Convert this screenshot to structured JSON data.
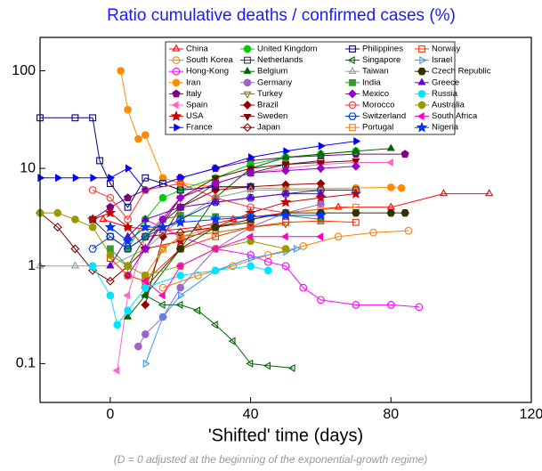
{
  "chart_data": {
    "type": "line",
    "title": "Ratio cumulative deaths / confirmed cases (%)",
    "xlabel": "'Shifted' time (days)",
    "annotation": "(D = 0 adjusted at the beginning of the exponential-growth regime)",
    "xlim": [
      -20,
      120
    ],
    "xticks": [
      0,
      40,
      80,
      120
    ],
    "ylim": [
      0.04,
      220
    ],
    "yticks": [
      0.1,
      1,
      10,
      100
    ],
    "log_y": true,
    "legend": "top-right",
    "series": [
      {
        "name": "China",
        "color": "#ff0000",
        "marker": "triangle-up",
        "filled": false,
        "x": [
          -2,
          5,
          15,
          25,
          35,
          50,
          65,
          80,
          95,
          108
        ],
        "values": [
          3,
          2.5,
          2.3,
          2.5,
          3,
          3.5,
          4,
          4,
          5.5,
          5.5
        ]
      },
      {
        "name": "South Korea",
        "color": "#ff8000",
        "marker": "circle",
        "filled": false,
        "x": [
          15,
          25,
          35,
          45,
          55,
          65,
          75,
          85
        ],
        "values": [
          0.6,
          0.8,
          1.0,
          1.3,
          1.6,
          2.0,
          2.2,
          2.3
        ]
      },
      {
        "name": "Hong-Kong",
        "color": "#ff00ff",
        "marker": "circle",
        "filled": false,
        "x": [
          10,
          20,
          30,
          40,
          45,
          50,
          55,
          60,
          70,
          80,
          88
        ],
        "values": [
          3,
          2,
          1.5,
          1.3,
          1.1,
          1.0,
          0.6,
          0.45,
          0.4,
          0.4,
          0.38
        ]
      },
      {
        "name": "Iran",
        "color": "#ff8c00",
        "marker": "circle",
        "filled": true,
        "x": [
          3,
          5,
          8,
          10,
          15,
          20,
          30,
          40,
          50,
          60,
          70,
          80,
          83
        ],
        "values": [
          100,
          40,
          20,
          22,
          8,
          7,
          6.5,
          6.3,
          6.2,
          6.2,
          6.3,
          6.4,
          6.3
        ]
      },
      {
        "name": "Italy",
        "color": "#800080",
        "marker": "pentagon",
        "filled": true,
        "x": [
          -5,
          0,
          5,
          10,
          20,
          30,
          40,
          50,
          60,
          70,
          84
        ],
        "values": [
          3,
          4,
          5,
          6,
          8,
          10,
          12,
          13,
          13.5,
          14,
          14
        ]
      },
      {
        "name": "Spain",
        "color": "#ff66cc",
        "marker": "triangle-left",
        "filled": true,
        "x": [
          2,
          5,
          10,
          20,
          30,
          40,
          50,
          60,
          70,
          80
        ],
        "values": [
          0.085,
          0.5,
          2,
          5,
          7,
          9,
          10,
          11,
          11.5,
          11.5
        ]
      },
      {
        "name": "USA",
        "color": "#cc0000",
        "marker": "star",
        "filled": true,
        "x": [
          -5,
          0,
          5,
          10,
          20,
          30,
          40,
          50,
          60,
          70
        ],
        "values": [
          3,
          3.5,
          2.5,
          1.5,
          1.8,
          2.5,
          3.5,
          4.5,
          5,
          5.5
        ]
      },
      {
        "name": "France",
        "color": "#0000ff",
        "marker": "triangle-right",
        "filled": true,
        "x": [
          -20,
          -15,
          -10,
          -5,
          0,
          5,
          10,
          20,
          30,
          40,
          50,
          60,
          70
        ],
        "values": [
          8,
          8,
          8,
          8,
          8,
          10,
          6,
          8,
          10,
          13,
          15,
          17,
          19
        ]
      },
      {
        "name": "United Kingdom",
        "color": "#00cc00",
        "marker": "circle",
        "filled": true,
        "x": [
          5,
          10,
          15,
          20,
          30,
          40,
          50,
          60,
          70
        ],
        "values": [
          1.5,
          3,
          5,
          6,
          8,
          11,
          13,
          14,
          15
        ]
      },
      {
        "name": "Netherlands",
        "color": "#333333",
        "marker": "square",
        "filled": false,
        "x": [
          -5,
          0,
          5,
          10,
          20,
          30,
          40,
          50,
          60
        ],
        "values": [
          3,
          2,
          1.5,
          2,
          4,
          7,
          9,
          11,
          12
        ]
      },
      {
        "name": "Belgium",
        "color": "#006600",
        "marker": "triangle-up",
        "filled": true,
        "x": [
          5,
          10,
          20,
          30,
          40,
          50,
          60,
          70,
          80
        ],
        "values": [
          0.3,
          0.5,
          1.5,
          5,
          10,
          13,
          14,
          15,
          16
        ]
      },
      {
        "name": "Germany",
        "color": "#9966cc",
        "marker": "circle",
        "filled": true,
        "x": [
          8,
          10,
          15,
          20,
          30,
          40,
          50,
          60
        ],
        "values": [
          0.15,
          0.2,
          0.3,
          0.6,
          1.5,
          2.5,
          3.5,
          4.3
        ]
      },
      {
        "name": "Turkey",
        "color": "#808000",
        "marker": "triangle-down",
        "filled": false,
        "x": [
          10,
          15,
          20,
          30,
          40,
          50
        ],
        "values": [
          0.6,
          1.5,
          2,
          2.2,
          2.5,
          2.7
        ]
      },
      {
        "name": "Brazil",
        "color": "#990000",
        "marker": "diamond",
        "filled": true,
        "x": [
          10,
          15,
          20,
          30,
          40,
          50,
          60
        ],
        "values": [
          0.4,
          2,
          4,
          6,
          6.5,
          6.8,
          7
        ]
      },
      {
        "name": "Sweden",
        "color": "#800000",
        "marker": "triangle-down",
        "filled": true,
        "x": [
          5,
          10,
          20,
          30,
          40,
          50,
          60,
          70
        ],
        "values": [
          1,
          1.5,
          5,
          8,
          10,
          11,
          11.5,
          12
        ]
      },
      {
        "name": "Japan",
        "color": "#800000",
        "marker": "diamond",
        "filled": false,
        "x": [
          -20,
          -15,
          -10,
          -5,
          0,
          5,
          10,
          20,
          30,
          40
        ],
        "values": [
          3.5,
          2.5,
          1.5,
          0.9,
          0.7,
          1,
          2,
          2.2,
          2.5,
          2.8
        ]
      },
      {
        "name": "Philippines",
        "color": "#000080",
        "marker": "square",
        "filled": false,
        "x": [
          -20,
          -10,
          -5,
          -3,
          0,
          5,
          10,
          15,
          20,
          30,
          40
        ],
        "values": [
          33,
          33,
          33,
          12,
          7,
          4,
          8,
          7,
          6,
          6.5,
          6.5
        ]
      },
      {
        "name": "Singapore",
        "color": "#006600",
        "marker": "triangle-left",
        "filled": false,
        "x": [
          10,
          15,
          20,
          25,
          30,
          35,
          40,
          45,
          52
        ],
        "values": [
          0.5,
          0.4,
          0.4,
          0.35,
          0.25,
          0.17,
          0.1,
          0.095,
          0.09
        ]
      },
      {
        "name": "Taiwan",
        "color": "#999999",
        "marker": "triangle-up",
        "filled": false,
        "x": [
          -20,
          -10,
          0,
          10,
          20,
          30,
          40,
          50,
          60
        ],
        "values": [
          1,
          1,
          1,
          1.5,
          3,
          5,
          6,
          6,
          6
        ]
      },
      {
        "name": "India",
        "color": "#339933",
        "marker": "square",
        "filled": true,
        "x": [
          0,
          5,
          10,
          15,
          20,
          30,
          40,
          50,
          60
        ],
        "values": [
          1.5,
          1,
          2,
          3,
          3.3,
          3.2,
          3.2,
          3.3,
          3
        ]
      },
      {
        "name": "Mexico",
        "color": "#9900cc",
        "marker": "diamond",
        "filled": true,
        "x": [
          5,
          10,
          15,
          20,
          30,
          40,
          50,
          60,
          70
        ],
        "values": [
          0.8,
          1.5,
          3,
          5,
          7,
          9,
          9.5,
          10,
          10.5
        ]
      },
      {
        "name": "Morocco",
        "color": "#ff3333",
        "marker": "circle",
        "filled": false,
        "x": [
          -5,
          0,
          5,
          10,
          20,
          30,
          40,
          50
        ],
        "values": [
          6,
          5,
          3,
          6,
          7,
          5,
          4,
          3.5
        ]
      },
      {
        "name": "Switzerland",
        "color": "#0033cc",
        "marker": "hexagon",
        "filled": false,
        "x": [
          -5,
          0,
          5,
          10,
          20,
          30,
          40,
          50,
          60,
          70
        ],
        "values": [
          1.5,
          2,
          1.5,
          2,
          3,
          4.5,
          5,
          5.5,
          6,
          6
        ]
      },
      {
        "name": "Portugal",
        "color": "#ff8000",
        "marker": "square",
        "filled": false,
        "x": [
          10,
          15,
          20,
          30,
          40,
          50,
          60,
          70
        ],
        "values": [
          0.8,
          1.5,
          2,
          2.5,
          3,
          3.5,
          3.8,
          4
        ]
      },
      {
        "name": "Norway",
        "color": "#ff3300",
        "marker": "square",
        "filled": false,
        "x": [
          0,
          5,
          10,
          20,
          30,
          40,
          50,
          60,
          70
        ],
        "values": [
          1.2,
          0.8,
          0.7,
          1.5,
          2,
          2.5,
          2.8,
          2.9,
          2.8
        ]
      },
      {
        "name": "Israel",
        "color": "#3399ff",
        "marker": "triangle-right",
        "filled": false,
        "x": [
          10,
          15,
          20,
          30,
          40,
          50,
          53
        ],
        "values": [
          0.1,
          0.3,
          0.5,
          0.9,
          1.2,
          1.4,
          1.5
        ]
      },
      {
        "name": "Czech Republic",
        "color": "#333300",
        "marker": "hexagon",
        "filled": true,
        "x": [
          10,
          20,
          30,
          40,
          50,
          60,
          70,
          80,
          84
        ],
        "values": [
          0.6,
          1.5,
          2.5,
          3,
          3.5,
          3.5,
          3.5,
          3.5,
          3.5
        ]
      },
      {
        "name": "Greece",
        "color": "#6600cc",
        "marker": "triangle-up",
        "filled": true,
        "x": [
          0,
          5,
          10,
          20,
          30,
          40,
          50,
          60
        ],
        "values": [
          1,
          2,
          3,
          4,
          4.5,
          5,
          5.5,
          5.5
        ]
      },
      {
        "name": "Russia",
        "color": "#00e5ff",
        "marker": "circle",
        "filled": true,
        "x": [
          -5,
          0,
          2,
          5,
          10,
          20,
          30,
          40,
          45
        ],
        "values": [
          1,
          0.5,
          0.25,
          0.35,
          0.6,
          0.8,
          0.9,
          1,
          0.9
        ]
      },
      {
        "name": "Australia",
        "color": "#999900",
        "marker": "circle",
        "filled": true,
        "x": [
          -20,
          -15,
          -10,
          -5,
          0,
          5,
          10,
          20,
          30,
          40,
          50
        ],
        "values": [
          3.5,
          3.5,
          3,
          2.5,
          1.3,
          1,
          0.8,
          1,
          1.5,
          1.8,
          1.5
        ]
      },
      {
        "name": "South Africa",
        "color": "#ff00cc",
        "marker": "triangle-left",
        "filled": true,
        "x": [
          10,
          15,
          20,
          30,
          40,
          50,
          60
        ],
        "values": [
          0.7,
          0.5,
          1,
          1.5,
          2,
          2,
          2
        ]
      },
      {
        "name": "Nigeria",
        "color": "#0033ff",
        "marker": "star",
        "filled": true,
        "x": [
          0,
          5,
          10,
          15,
          20,
          30,
          40,
          50,
          60
        ],
        "values": [
          2.5,
          1.8,
          2.5,
          2.5,
          2.8,
          3,
          3.2,
          3.3,
          3.3
        ]
      }
    ]
  }
}
